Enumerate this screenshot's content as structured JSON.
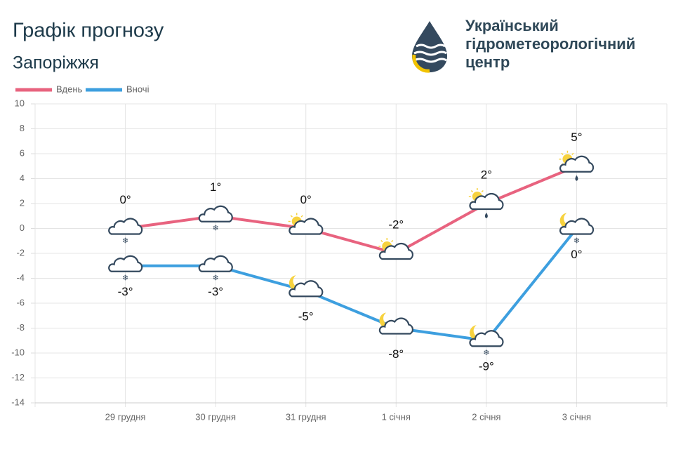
{
  "header": {
    "title": "Графік прогнозу",
    "subtitle": "Запоріжжя",
    "logo_lines": [
      "Український",
      "гідрометеорологічний",
      "центр"
    ]
  },
  "chart_data": {
    "type": "line",
    "categories": [
      "29 грудня",
      "30 грудня",
      "31 грудня",
      "1 січня",
      "2 січня",
      "3 січня"
    ],
    "series": [
      {
        "name": "Вдень",
        "color": "#e8637f",
        "values": [
          0,
          1,
          0,
          -2,
          2,
          5
        ],
        "value_labels": [
          "0°",
          "1°",
          "0°",
          "-2°",
          "2°",
          "5°"
        ]
      },
      {
        "name": "Вночі",
        "color": "#3d9fdf",
        "values": [
          -3,
          -3,
          -5,
          -8,
          -9,
          0
        ],
        "value_labels": [
          "-3°",
          "-3°",
          "-5°",
          "-8°",
          "-9°",
          "0°"
        ]
      }
    ],
    "ylim": [
      -14,
      10
    ],
    "yticks": [
      -14,
      -12,
      -10,
      -8,
      -6,
      -4,
      -2,
      0,
      2,
      4,
      6,
      8,
      10
    ],
    "grid": true
  }
}
